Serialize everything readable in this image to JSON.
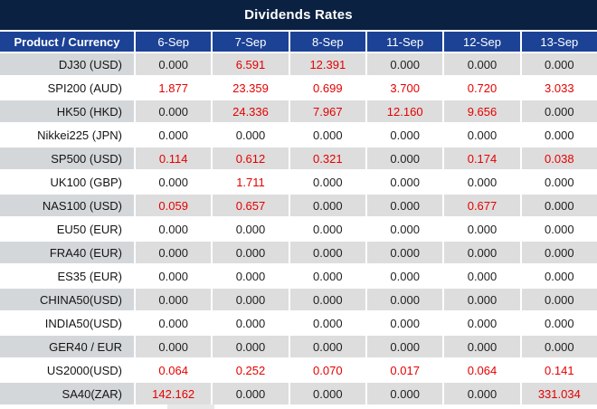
{
  "chart_data": {
    "type": "table",
    "title": "Dividends Rates",
    "columns": [
      "Product / Currency",
      "6-Sep",
      "7-Sep",
      "8-Sep",
      "11-Sep",
      "12-Sep",
      "13-Sep"
    ],
    "rows": [
      {
        "product": "DJ30 (USD)",
        "values": [
          "0.000",
          "6.591",
          "12.391",
          "0.000",
          "0.000",
          "0.000"
        ]
      },
      {
        "product": "SPI200 (AUD)",
        "values": [
          "1.877",
          "23.359",
          "0.699",
          "3.700",
          "0.720",
          "3.033"
        ]
      },
      {
        "product": "HK50 (HKD)",
        "values": [
          "0.000",
          "24.336",
          "7.967",
          "12.160",
          "9.656",
          "0.000"
        ]
      },
      {
        "product": "Nikkei225 (JPN)",
        "values": [
          "0.000",
          "0.000",
          "0.000",
          "0.000",
          "0.000",
          "0.000"
        ]
      },
      {
        "product": "SP500 (USD)",
        "values": [
          "0.114",
          "0.612",
          "0.321",
          "0.000",
          "0.174",
          "0.038"
        ]
      },
      {
        "product": "UK100 (GBP)",
        "values": [
          "0.000",
          "1.711",
          "0.000",
          "0.000",
          "0.000",
          "0.000"
        ]
      },
      {
        "product": "NAS100 (USD)",
        "values": [
          "0.059",
          "0.657",
          "0.000",
          "0.000",
          "0.677",
          "0.000"
        ]
      },
      {
        "product": "EU50 (EUR)",
        "values": [
          "0.000",
          "0.000",
          "0.000",
          "0.000",
          "0.000",
          "0.000"
        ]
      },
      {
        "product": "FRA40 (EUR)",
        "values": [
          "0.000",
          "0.000",
          "0.000",
          "0.000",
          "0.000",
          "0.000"
        ]
      },
      {
        "product": "ES35 (EUR)",
        "values": [
          "0.000",
          "0.000",
          "0.000",
          "0.000",
          "0.000",
          "0.000"
        ]
      },
      {
        "product": "CHINA50(USD)",
        "values": [
          "0.000",
          "0.000",
          "0.000",
          "0.000",
          "0.000",
          "0.000"
        ]
      },
      {
        "product": "INDIA50(USD)",
        "values": [
          "0.000",
          "0.000",
          "0.000",
          "0.000",
          "0.000",
          "0.000"
        ]
      },
      {
        "product": "GER40 / EUR",
        "values": [
          "0.000",
          "0.000",
          "0.000",
          "0.000",
          "0.000",
          "0.000"
        ]
      },
      {
        "product": "US2000(USD)",
        "values": [
          "0.064",
          "0.252",
          "0.070",
          "0.017",
          "0.064",
          "0.141"
        ]
      },
      {
        "product": "SA40(ZAR)",
        "values": [
          "142.162",
          "0.000",
          "0.000",
          "0.000",
          "0.000",
          "331.034"
        ]
      }
    ],
    "highlight_rule": "non-zero values rendered in red",
    "layout": {
      "zebra_striping": true,
      "first_row_shaded": true,
      "gridlines": "white"
    }
  },
  "colors": {
    "title_bg": "#0b2142",
    "header_bg": "#1c4296",
    "header_text": "#ffffff",
    "alt_row_label_bg": "#d4d7da",
    "alt_row_data_bg": "#dddddd",
    "plain_row_bg": "#ffffff",
    "grid_line": "#ffffff",
    "value_black": "#1f1f1f",
    "value_red": "#e60000"
  }
}
